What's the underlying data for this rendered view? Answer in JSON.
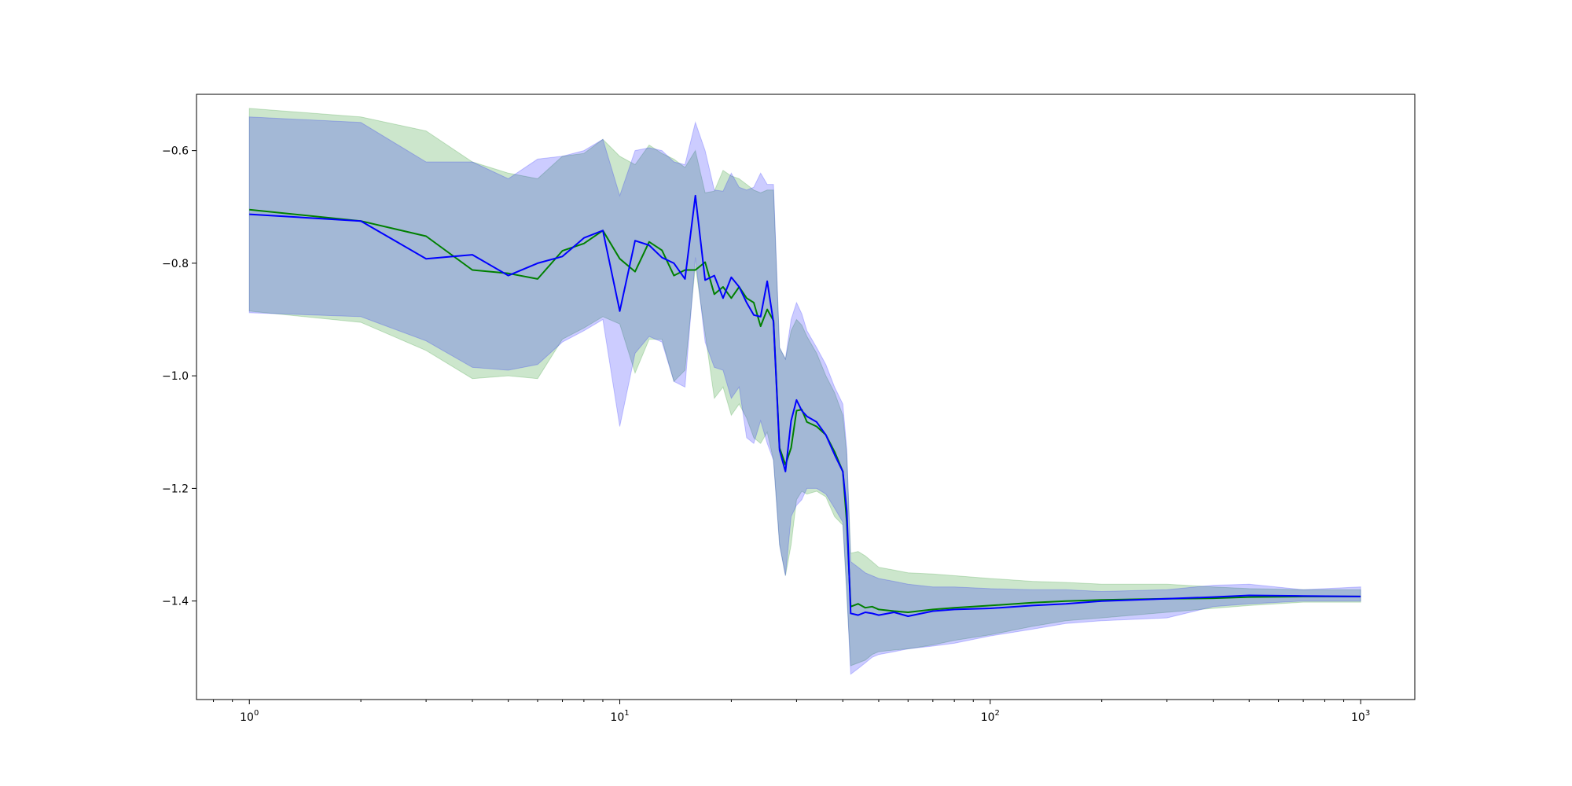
{
  "chart_data": {
    "type": "line",
    "title": "",
    "xlabel": "",
    "ylabel": "",
    "xscale": "log",
    "xlim": [
      0.72,
      1400
    ],
    "ylim": [
      -1.575,
      -0.5
    ],
    "grid": false,
    "legend": "none",
    "x_ticks": [
      {
        "value": 1,
        "base": "10",
        "exp": "0"
      },
      {
        "value": 10,
        "base": "10",
        "exp": "1"
      },
      {
        "value": 100,
        "base": "10",
        "exp": "2"
      },
      {
        "value": 1000,
        "base": "10",
        "exp": "3"
      }
    ],
    "y_ticks": [
      {
        "value": -0.6,
        "label": "−0.6"
      },
      {
        "value": -0.8,
        "label": "−0.8"
      },
      {
        "value": -1.0,
        "label": "−1.0"
      },
      {
        "value": -1.2,
        "label": "−1.2"
      },
      {
        "value": -1.4,
        "label": "−1.4"
      }
    ],
    "series": [
      {
        "color": "#008000",
        "band_color": "#008000",
        "band_opacity": 0.2,
        "x": [
          1,
          2,
          3,
          4,
          5,
          6,
          7,
          8,
          9,
          10,
          11,
          12,
          13,
          14,
          15,
          16,
          17,
          18,
          19,
          20,
          21,
          22,
          23,
          24,
          25,
          26,
          27,
          28,
          29,
          30,
          31,
          32,
          34,
          36,
          38,
          40,
          41,
          42,
          44,
          46,
          48,
          50,
          55,
          60,
          70,
          80,
          100,
          130,
          160,
          200,
          300,
          400,
          500,
          700,
          1000
        ],
        "y": [
          -0.705,
          -0.725,
          -0.752,
          -0.812,
          -0.818,
          -0.828,
          -0.778,
          -0.765,
          -0.742,
          -0.792,
          -0.815,
          -0.762,
          -0.777,
          -0.822,
          -0.812,
          -0.812,
          -0.798,
          -0.855,
          -0.842,
          -0.862,
          -0.842,
          -0.862,
          -0.87,
          -0.912,
          -0.882,
          -0.902,
          -1.128,
          -1.158,
          -1.128,
          -1.062,
          -1.06,
          -1.082,
          -1.09,
          -1.105,
          -1.135,
          -1.17,
          -1.26,
          -1.41,
          -1.405,
          -1.412,
          -1.41,
          -1.415,
          -1.418,
          -1.42,
          -1.415,
          -1.412,
          -1.408,
          -1.403,
          -1.4,
          -1.398,
          -1.396,
          -1.395,
          -1.393,
          -1.392,
          -1.392
        ],
        "lower": [
          -0.885,
          -0.905,
          -0.955,
          -1.005,
          -1.0,
          -1.005,
          -0.935,
          -0.915,
          -0.895,
          -0.908,
          -0.995,
          -0.935,
          -0.935,
          -1.01,
          -0.99,
          -0.805,
          -0.925,
          -1.04,
          -1.02,
          -1.07,
          -1.05,
          -1.075,
          -1.11,
          -1.12,
          -1.1,
          -1.15,
          -1.3,
          -1.355,
          -1.3,
          -1.22,
          -1.205,
          -1.21,
          -1.205,
          -1.215,
          -1.25,
          -1.265,
          -1.39,
          -1.515,
          -1.51,
          -1.505,
          -1.495,
          -1.49,
          -1.487,
          -1.485,
          -1.478,
          -1.47,
          -1.46,
          -1.445,
          -1.435,
          -1.43,
          -1.42,
          -1.413,
          -1.408,
          -1.402,
          -1.402
        ],
        "upper": [
          -0.525,
          -0.54,
          -0.565,
          -0.62,
          -0.64,
          -0.65,
          -0.61,
          -0.605,
          -0.58,
          -0.61,
          -0.625,
          -0.59,
          -0.605,
          -0.615,
          -0.63,
          -0.6,
          -0.675,
          -0.672,
          -0.635,
          -0.645,
          -0.65,
          -0.66,
          -0.67,
          -0.675,
          -0.67,
          -0.67,
          -0.95,
          -0.97,
          -0.92,
          -0.9,
          -0.91,
          -0.93,
          -0.96,
          -1.0,
          -1.03,
          -1.07,
          -1.14,
          -1.315,
          -1.312,
          -1.32,
          -1.33,
          -1.34,
          -1.345,
          -1.35,
          -1.352,
          -1.355,
          -1.36,
          -1.365,
          -1.367,
          -1.37,
          -1.37,
          -1.375,
          -1.378,
          -1.38,
          -1.38
        ]
      },
      {
        "color": "#0000ff",
        "band_color": "#0000ff",
        "band_opacity": 0.2,
        "x": [
          1,
          2,
          3,
          4,
          5,
          6,
          7,
          8,
          9,
          10,
          11,
          12,
          13,
          14,
          15,
          16,
          17,
          18,
          19,
          20,
          21,
          22,
          23,
          24,
          25,
          26,
          27,
          28,
          29,
          30,
          31,
          32,
          34,
          36,
          38,
          40,
          41,
          42,
          44,
          46,
          48,
          50,
          55,
          60,
          70,
          80,
          100,
          130,
          160,
          200,
          300,
          400,
          500,
          700,
          1000
        ],
        "y": [
          -0.713,
          -0.725,
          -0.792,
          -0.785,
          -0.822,
          -0.8,
          -0.788,
          -0.755,
          -0.742,
          -0.885,
          -0.76,
          -0.768,
          -0.79,
          -0.8,
          -0.828,
          -0.68,
          -0.83,
          -0.822,
          -0.862,
          -0.825,
          -0.842,
          -0.87,
          -0.892,
          -0.895,
          -0.832,
          -0.905,
          -1.132,
          -1.17,
          -1.08,
          -1.043,
          -1.062,
          -1.072,
          -1.082,
          -1.105,
          -1.14,
          -1.17,
          -1.24,
          -1.422,
          -1.425,
          -1.42,
          -1.422,
          -1.425,
          -1.42,
          -1.427,
          -1.418,
          -1.415,
          -1.413,
          -1.408,
          -1.405,
          -1.4,
          -1.396,
          -1.393,
          -1.39,
          -1.391,
          -1.392
        ],
        "lower": [
          -0.888,
          -0.895,
          -0.938,
          -0.985,
          -0.99,
          -0.98,
          -0.94,
          -0.92,
          -0.9,
          -1.09,
          -0.96,
          -0.93,
          -0.94,
          -1.01,
          -1.02,
          -0.79,
          -0.94,
          -0.985,
          -0.99,
          -1.04,
          -1.02,
          -1.11,
          -1.12,
          -1.08,
          -1.12,
          -1.15,
          -1.3,
          -1.355,
          -1.25,
          -1.23,
          -1.22,
          -1.2,
          -1.2,
          -1.21,
          -1.235,
          -1.26,
          -1.38,
          -1.53,
          -1.52,
          -1.51,
          -1.5,
          -1.495,
          -1.49,
          -1.485,
          -1.48,
          -1.475,
          -1.462,
          -1.45,
          -1.44,
          -1.435,
          -1.43,
          -1.41,
          -1.405,
          -1.4,
          -1.4
        ],
        "upper": [
          -0.54,
          -0.55,
          -0.62,
          -0.62,
          -0.65,
          -0.615,
          -0.61,
          -0.6,
          -0.58,
          -0.68,
          -0.6,
          -0.595,
          -0.6,
          -0.62,
          -0.625,
          -0.55,
          -0.6,
          -0.67,
          -0.672,
          -0.64,
          -0.665,
          -0.67,
          -0.665,
          -0.64,
          -0.66,
          -0.66,
          -0.95,
          -0.97,
          -0.9,
          -0.87,
          -0.89,
          -0.92,
          -0.95,
          -0.98,
          -1.02,
          -1.05,
          -1.13,
          -1.33,
          -1.34,
          -1.35,
          -1.355,
          -1.36,
          -1.365,
          -1.37,
          -1.375,
          -1.375,
          -1.378,
          -1.38,
          -1.38,
          -1.383,
          -1.38,
          -1.372,
          -1.37,
          -1.38,
          -1.375
        ]
      }
    ]
  }
}
